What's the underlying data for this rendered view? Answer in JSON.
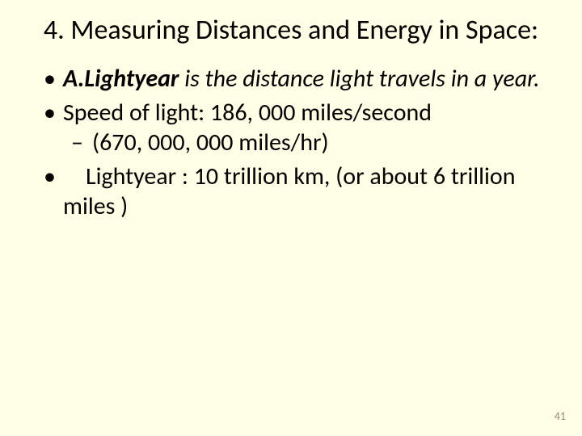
{
  "slide": {
    "background_color": "#ffffe7",
    "text_color": "#000000",
    "font_family": "Calibri",
    "title": "4. Measuring Distances and Energy in Space:",
    "title_fontsize": 34,
    "body_fontsize": 30,
    "bullets": [
      {
        "prefix_emph": "A.",
        "term_emph": "Lightyear",
        "rest": " is the distance light travels in a year."
      },
      {
        "text": "Speed of light: 186, 000 miles/second",
        "sub": "(670, 000, 000 miles/hr)"
      },
      {
        "lead_space": true,
        "text": "Lightyear :  10 trillion km, (or about 6 trillion miles )"
      }
    ],
    "page_number": "41",
    "page_number_color": "#9a8b73",
    "page_number_fontsize": 14
  }
}
